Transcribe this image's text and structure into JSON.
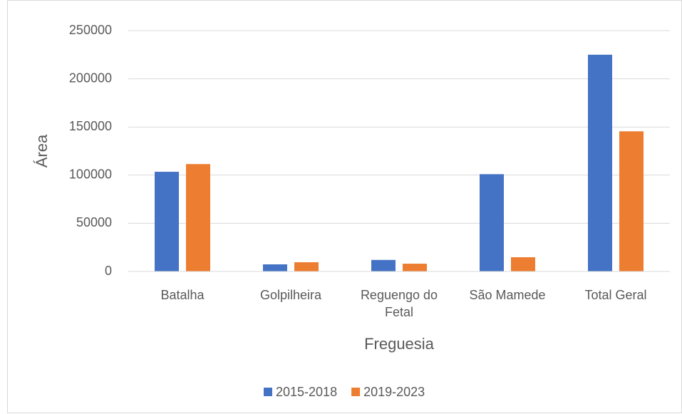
{
  "chart_data": {
    "type": "bar",
    "categories": [
      "Batalha",
      "Golpilheira",
      "Reguengo do Fetal",
      "São Mamede",
      "Total Geral"
    ],
    "series": [
      {
        "name": "2015-2018",
        "color": "#4472c4",
        "values": [
          103500,
          7400,
          12000,
          101000,
          225000
        ]
      },
      {
        "name": "2019-2023",
        "color": "#ed7d31",
        "values": [
          111500,
          9600,
          8100,
          14800,
          145500
        ]
      }
    ],
    "x_label": "Freguesia",
    "y_label": "Área",
    "ylim": [
      0,
      250000
    ],
    "yticks": [
      0,
      50000,
      100000,
      150000,
      200000,
      250000
    ],
    "grid": true,
    "legend": "bottom"
  }
}
